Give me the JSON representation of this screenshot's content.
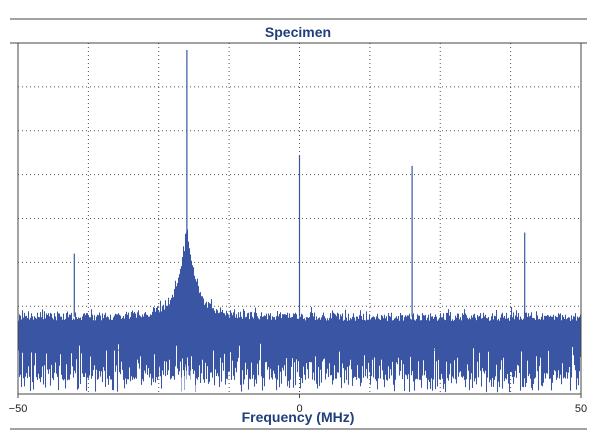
{
  "chart_data": {
    "type": "line",
    "title": "Specimen",
    "xlabel": "Frequency (MHz)",
    "ylabel": "",
    "xlim": [
      -50,
      50
    ],
    "ylim": [
      0,
      1
    ],
    "xticks": [
      -50,
      0,
      50
    ],
    "xtick_labels": [
      "−50",
      "0",
      "50"
    ],
    "grid": true,
    "series": [
      {
        "color": "#3a55a4",
        "description_free": true,
        "noise_floor_level": 0.22,
        "peaks": [
          {
            "x": -40,
            "value": 0.4
          },
          {
            "x": -20,
            "value": 0.98
          },
          {
            "x": 0,
            "value": 0.68
          },
          {
            "x": 20,
            "value": 0.65
          },
          {
            "x": 40,
            "value": 0.46
          }
        ]
      }
    ]
  },
  "colors": {
    "accent": "#1f3f7a",
    "series": "#3a55a4",
    "frame": "#444444"
  }
}
